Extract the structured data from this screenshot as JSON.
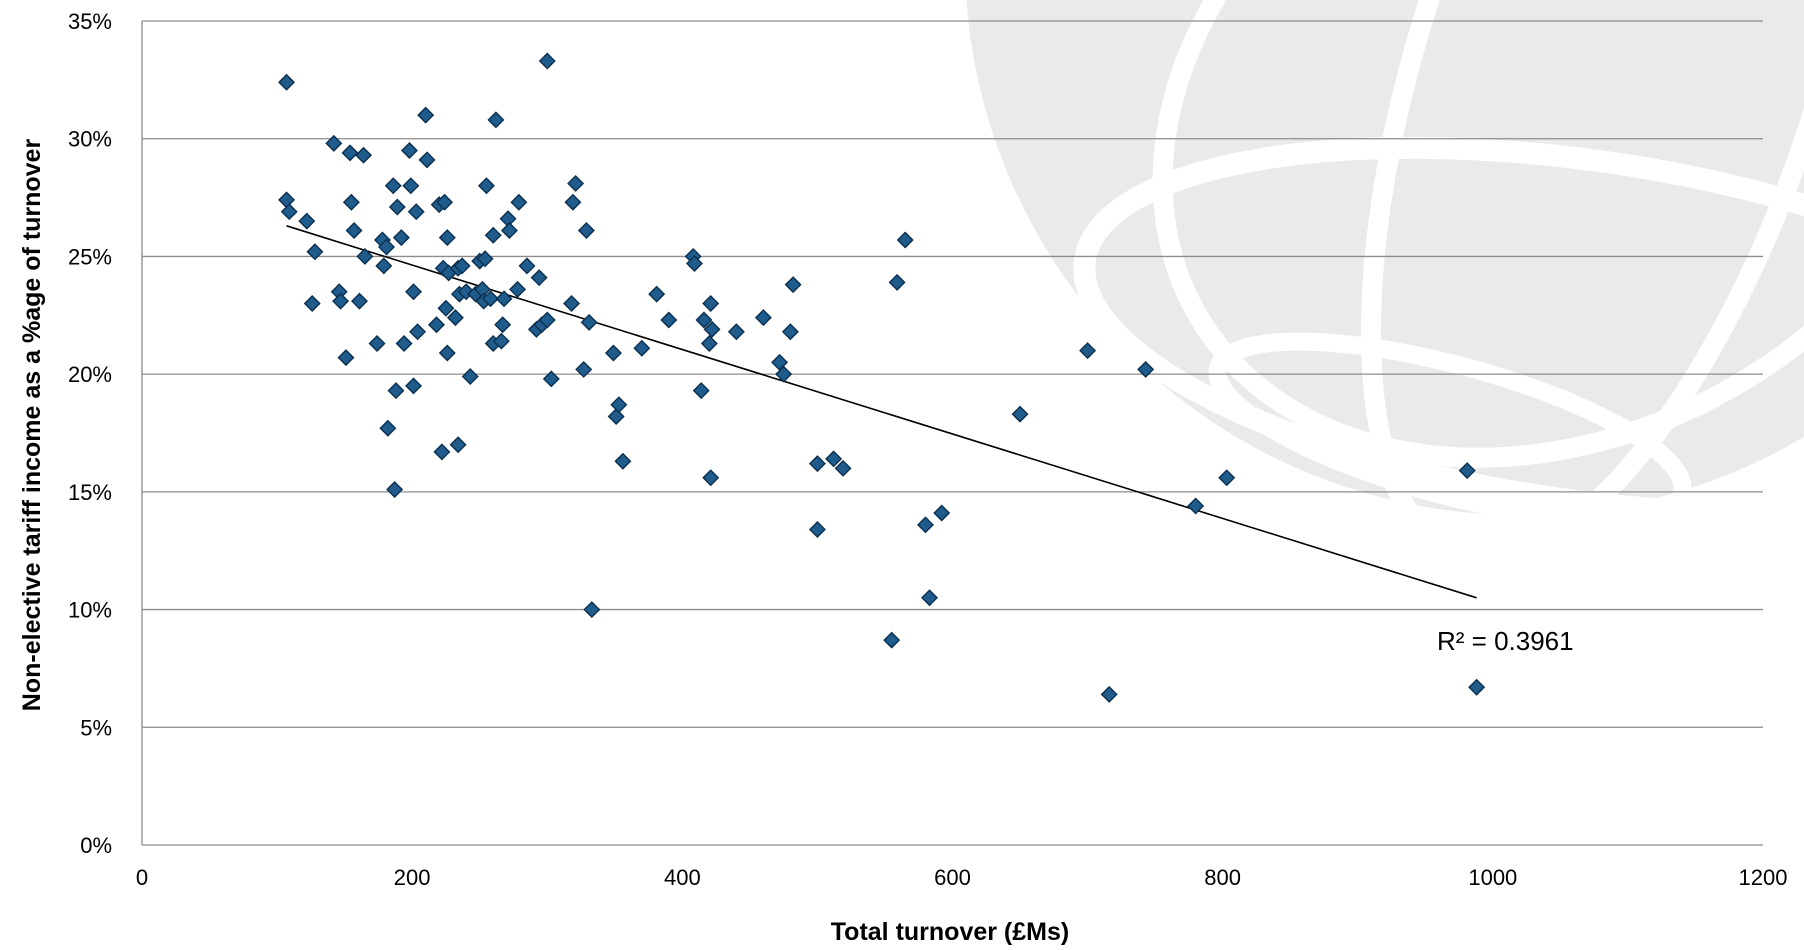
{
  "chart_data": {
    "type": "scatter",
    "title": "",
    "xlabel": "Total turnover  (£Ms)",
    "ylabel": "Non-elective tariff income as a %age of turnover",
    "xlim": [
      0,
      1200
    ],
    "ylim": [
      0,
      35
    ],
    "x_ticks": [
      "0",
      "200",
      "400",
      "600",
      "800",
      "1000",
      "1200"
    ],
    "y_ticks": [
      "0%",
      "5%",
      "10%",
      "15%",
      "20%",
      "25%",
      "30%",
      "35%"
    ],
    "grid": "horizontal",
    "legend": "none",
    "marker": "diamond",
    "marker_color": "#1F5C8B",
    "marker_edge_color": "#0B2F4F",
    "trendline": {
      "type": "linear",
      "x_range": [
        107,
        988
      ],
      "y_start": 26.3,
      "y_end": 10.5,
      "label": "R² = 0.3961"
    },
    "points": [
      [
        107,
        32.4
      ],
      [
        107,
        27.4
      ],
      [
        109,
        26.9
      ],
      [
        122,
        26.5
      ],
      [
        126,
        23.0
      ],
      [
        128,
        25.2
      ],
      [
        142,
        29.8
      ],
      [
        146,
        23.5
      ],
      [
        147,
        23.1
      ],
      [
        151,
        20.7
      ],
      [
        154,
        29.4
      ],
      [
        155,
        27.3
      ],
      [
        157,
        26.1
      ],
      [
        161,
        23.1
      ],
      [
        164,
        29.3
      ],
      [
        165,
        25.0
      ],
      [
        174,
        21.3
      ],
      [
        178,
        25.7
      ],
      [
        179,
        24.6
      ],
      [
        181,
        25.4
      ],
      [
        182,
        17.7
      ],
      [
        186,
        28.0
      ],
      [
        187,
        15.1
      ],
      [
        188,
        19.3
      ],
      [
        189,
        27.1
      ],
      [
        192,
        25.8
      ],
      [
        194,
        21.3
      ],
      [
        198,
        29.5
      ],
      [
        199,
        28.0
      ],
      [
        201,
        23.5
      ],
      [
        201,
        19.5
      ],
      [
        203,
        26.9
      ],
      [
        204,
        21.8
      ],
      [
        210,
        31.0
      ],
      [
        211,
        29.1
      ],
      [
        218,
        22.1
      ],
      [
        220,
        27.2
      ],
      [
        222,
        16.7
      ],
      [
        223,
        24.5
      ],
      [
        224,
        27.3
      ],
      [
        225,
        22.8
      ],
      [
        226,
        25.8
      ],
      [
        226,
        20.9
      ],
      [
        227,
        24.3
      ],
      [
        232,
        22.4
      ],
      [
        234,
        24.5
      ],
      [
        234,
        17.0
      ],
      [
        235,
        23.4
      ],
      [
        237,
        24.6
      ],
      [
        240,
        23.5
      ],
      [
        243,
        19.9
      ],
      [
        247,
        23.4
      ],
      [
        250,
        24.8
      ],
      [
        252,
        23.6
      ],
      [
        253,
        23.1
      ],
      [
        254,
        24.9
      ],
      [
        255,
        28.0
      ],
      [
        258,
        23.2
      ],
      [
        260,
        21.3
      ],
      [
        260,
        25.9
      ],
      [
        262,
        30.8
      ],
      [
        266,
        21.4
      ],
      [
        267,
        22.1
      ],
      [
        268,
        23.2
      ],
      [
        271,
        26.6
      ],
      [
        272,
        26.1
      ],
      [
        278,
        23.6
      ],
      [
        279,
        27.3
      ],
      [
        285,
        24.6
      ],
      [
        292,
        21.9
      ],
      [
        294,
        24.1
      ],
      [
        296,
        22.1
      ],
      [
        300,
        22.3
      ],
      [
        300,
        33.3
      ],
      [
        303,
        19.8
      ],
      [
        318,
        23.0
      ],
      [
        319,
        27.3
      ],
      [
        321,
        28.1
      ],
      [
        327,
        20.2
      ],
      [
        329,
        26.1
      ],
      [
        331,
        22.2
      ],
      [
        333,
        10.0
      ],
      [
        349,
        20.9
      ],
      [
        351,
        18.2
      ],
      [
        353,
        18.7
      ],
      [
        356,
        16.3
      ],
      [
        370,
        21.1
      ],
      [
        381,
        23.4
      ],
      [
        390,
        22.3
      ],
      [
        408,
        25.0
      ],
      [
        409,
        24.7
      ],
      [
        414,
        19.3
      ],
      [
        416,
        22.3
      ],
      [
        420,
        21.3
      ],
      [
        421,
        23.0
      ],
      [
        421,
        15.6
      ],
      [
        422,
        21.9
      ],
      [
        440,
        21.8
      ],
      [
        460,
        22.4
      ],
      [
        472,
        20.5
      ],
      [
        475,
        20.0
      ],
      [
        480,
        21.8
      ],
      [
        482,
        23.8
      ],
      [
        500,
        16.2
      ],
      [
        500,
        13.4
      ],
      [
        512,
        16.4
      ],
      [
        519,
        16.0
      ],
      [
        555,
        8.7
      ],
      [
        559,
        23.9
      ],
      [
        565,
        25.7
      ],
      [
        580,
        13.6
      ],
      [
        583,
        10.5
      ],
      [
        592,
        14.1
      ],
      [
        650,
        18.3
      ],
      [
        700,
        21.0
      ],
      [
        716,
        6.4
      ],
      [
        743,
        20.2
      ],
      [
        780,
        14.4
      ],
      [
        803,
        15.6
      ],
      [
        981,
        15.9
      ],
      [
        988,
        6.7
      ]
    ]
  }
}
